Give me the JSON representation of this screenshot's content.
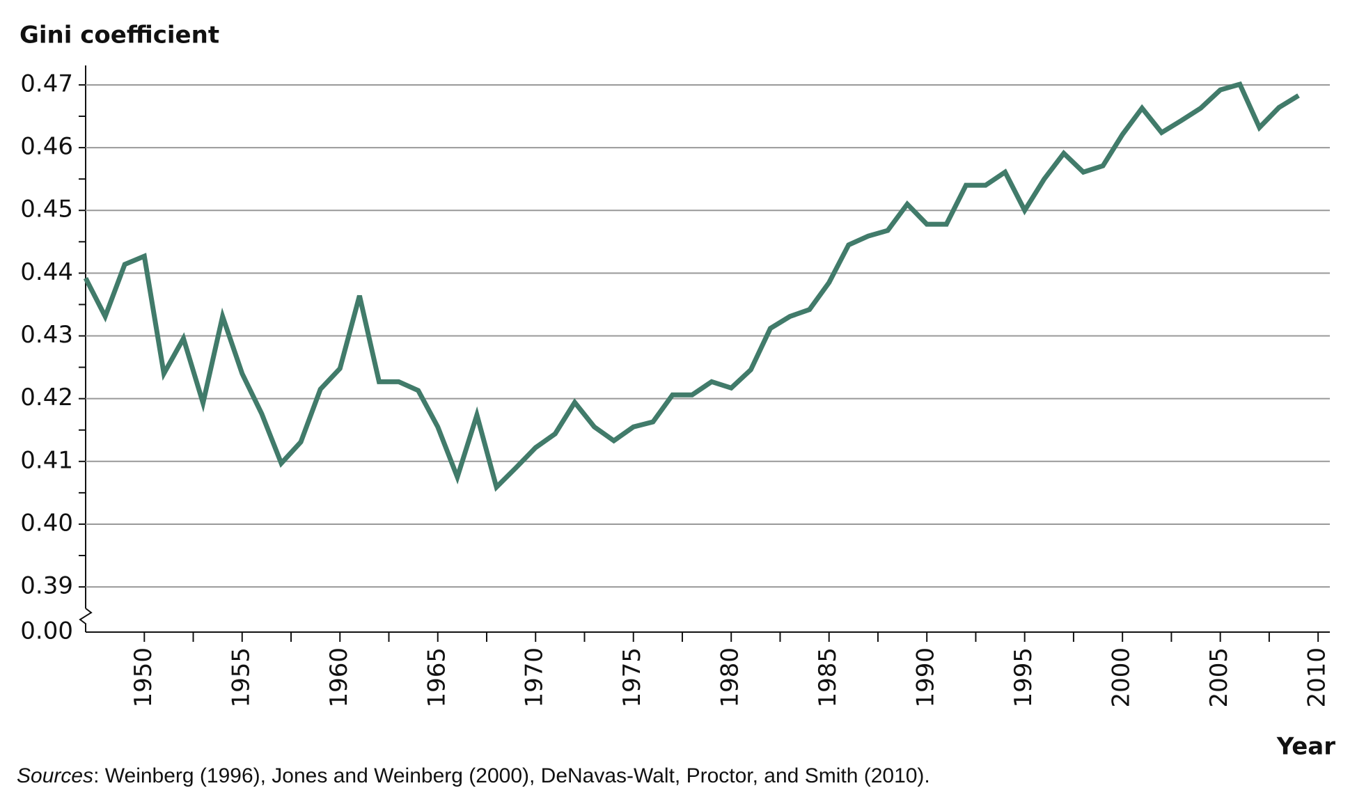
{
  "chart_data": {
    "type": "line",
    "y_axis_title": "Gini coefficient",
    "x_axis_title": "Year",
    "source_label": "Sources",
    "source_text": ": Weinberg (1996), Jones and Weinberg (2000), DeNavas-Walt, Proctor, and Smith (2010).",
    "x": [
      1947,
      1948,
      1949,
      1950,
      1951,
      1952,
      1953,
      1954,
      1955,
      1956,
      1957,
      1958,
      1959,
      1960,
      1961,
      1962,
      1963,
      1964,
      1965,
      1966,
      1967,
      1968,
      1969,
      1970,
      1971,
      1972,
      1973,
      1974,
      1975,
      1976,
      1977,
      1978,
      1979,
      1980,
      1981,
      1982,
      1983,
      1984,
      1985,
      1986,
      1987,
      1988,
      1989,
      1990,
      1991,
      1992,
      1993,
      1994,
      1995,
      1996,
      1997,
      1998,
      1999,
      2000,
      2001,
      2002,
      2003,
      2004,
      2005,
      2006,
      2007,
      2008,
      2009
    ],
    "series": [
      {
        "color": "#417b6a",
        "values": [
          0.4392,
          0.4331,
          0.4414,
          0.4427,
          0.424,
          0.4296,
          0.4193,
          0.4331,
          0.424,
          0.4176,
          0.4097,
          0.4131,
          0.4215,
          0.4248,
          0.4364,
          0.4227,
          0.4227,
          0.4213,
          0.4155,
          0.4075,
          0.4174,
          0.4059,
          0.409,
          0.4122,
          0.4144,
          0.4194,
          0.4155,
          0.4133,
          0.4155,
          0.4163,
          0.4206,
          0.4206,
          0.4227,
          0.4217,
          0.4246,
          0.4312,
          0.4331,
          0.4342,
          0.4385,
          0.4445,
          0.4459,
          0.4468,
          0.451,
          0.4478,
          0.4478,
          0.454,
          0.454,
          0.4561,
          0.45,
          0.455,
          0.4591,
          0.4561,
          0.4571,
          0.4621,
          0.4663,
          0.4624,
          0.4643,
          0.4663,
          0.4692,
          0.4701,
          0.4632,
          0.4664,
          0.4683
        ]
      }
    ],
    "xlim": [
      1947,
      2010.6
    ],
    "ylim": [
      0.3828,
      0.4731
    ],
    "xticks": [
      1950,
      1955,
      1960,
      1965,
      1970,
      1975,
      1980,
      1985,
      1990,
      1995,
      2000,
      2005,
      2010
    ],
    "xminorticks": [
      1952.5,
      1957.5,
      1962.5,
      1967.5,
      1972.5,
      1977.5,
      1982.5,
      1987.5,
      1992.5,
      1997.5,
      2002.5,
      2007.5
    ],
    "yticks": [
      0.39,
      {
        "value": 0.4,
        "label": "0.40"
      },
      0.41,
      0.42,
      0.43,
      0.44,
      0.45,
      0.46,
      0.47
    ],
    "yminorticks": [
      0.395,
      0.405,
      0.415,
      0.425,
      0.435,
      0.445,
      0.455,
      0.465
    ],
    "y_break_tick": {
      "value": 0,
      "label": "0.00"
    },
    "grid": true
  }
}
